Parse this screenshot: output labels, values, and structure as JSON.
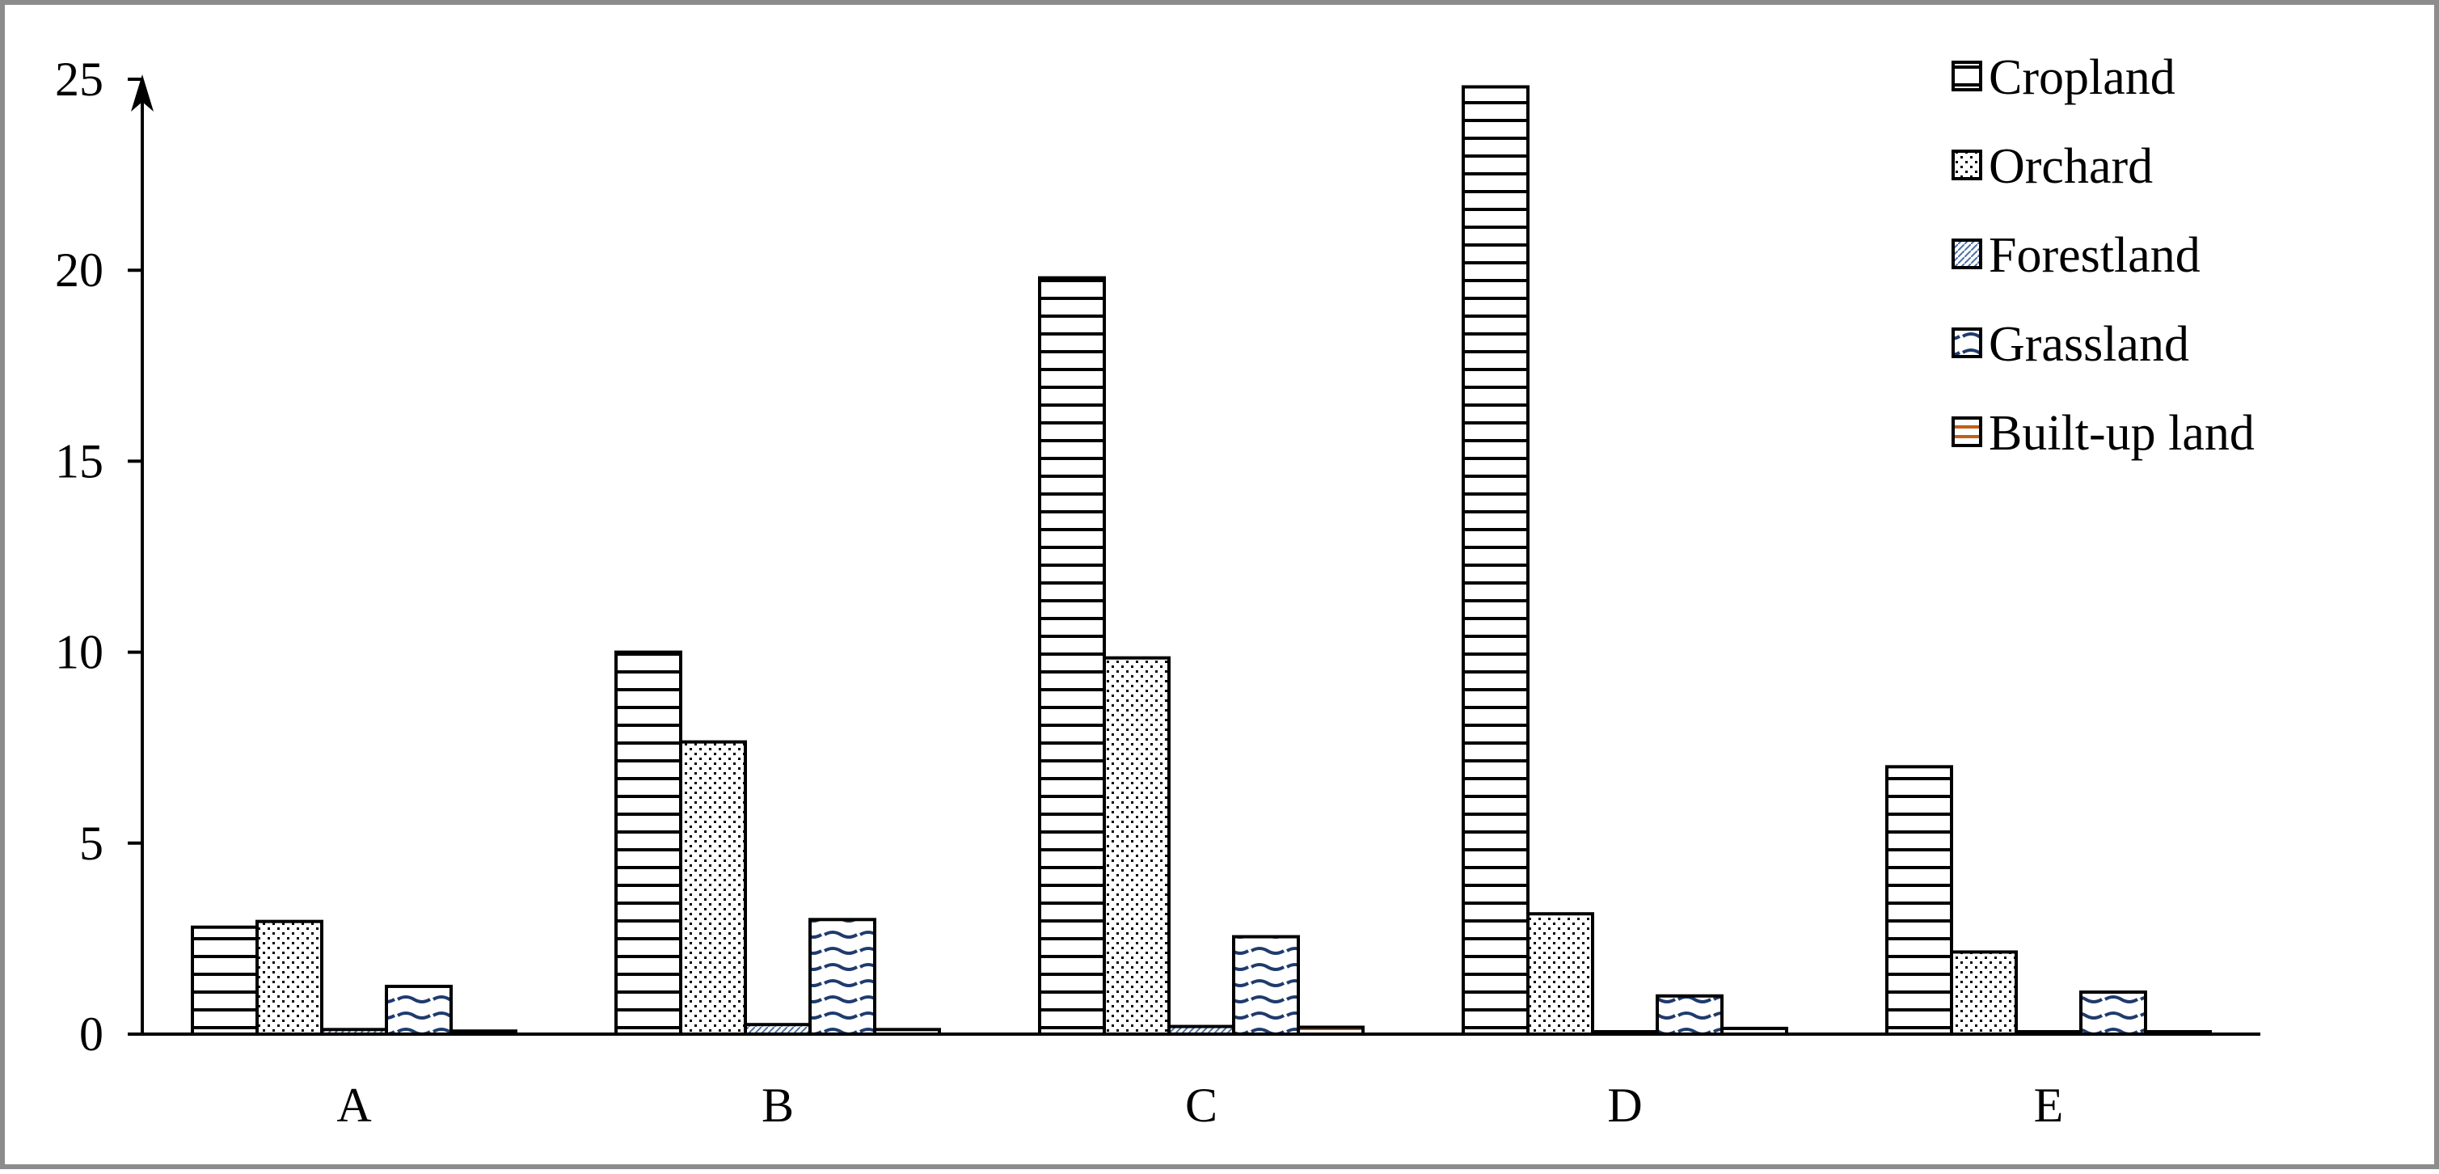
{
  "chart_data": {
    "type": "bar",
    "categories": [
      "A",
      "B",
      "C",
      "D",
      "E"
    ],
    "series": [
      {
        "name": "Cropland",
        "values": [
          2.8,
          10.0,
          19.8,
          24.8,
          7.0
        ],
        "pattern": "hlines",
        "color": "#000000"
      },
      {
        "name": "Orchard",
        "values": [
          2.95,
          7.65,
          9.85,
          3.15,
          2.15
        ],
        "pattern": "dots",
        "color": "#000000"
      },
      {
        "name": "Forestland",
        "values": [
          0.12,
          0.25,
          0.2,
          0.05,
          0.05
        ],
        "pattern": "fine",
        "color": "#4a6fa5"
      },
      {
        "name": "Grassland",
        "values": [
          1.25,
          3.0,
          2.55,
          1.0,
          1.1
        ],
        "pattern": "waves",
        "color": "#1f3b6e"
      },
      {
        "name": "Built-up land",
        "values": [
          0.08,
          0.12,
          0.18,
          0.15,
          0.05
        ],
        "pattern": "hlines",
        "color": "#c0601a"
      }
    ],
    "yticks": [
      "0",
      "5",
      "10",
      "15",
      "20",
      "25"
    ],
    "ylim": [
      0,
      25
    ],
    "legend_position": "top-right",
    "grid": false
  }
}
